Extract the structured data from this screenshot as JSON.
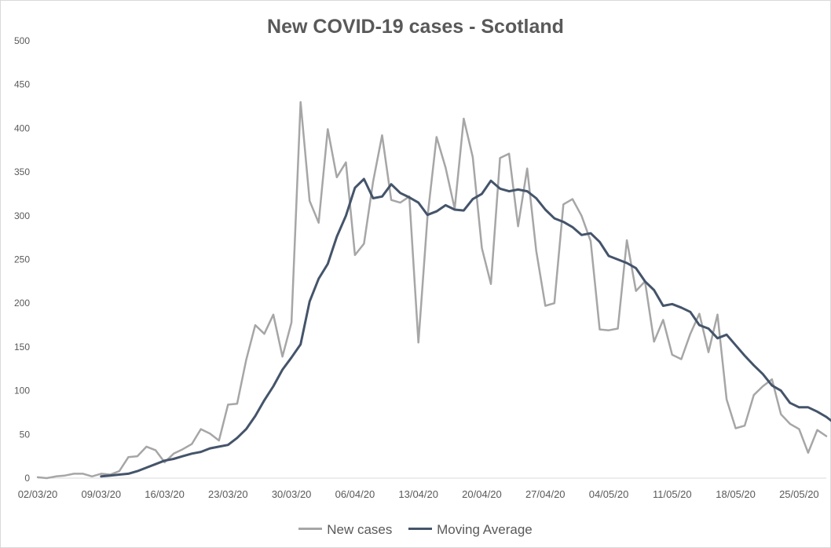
{
  "chart_data": {
    "type": "line",
    "title": "New COVID-19 cases - Scotland",
    "xlabel": "",
    "ylabel": "",
    "ylim": [
      0,
      500
    ],
    "y_ticks": [
      0,
      50,
      100,
      150,
      200,
      250,
      300,
      350,
      400,
      450,
      500
    ],
    "x_tick_labels": [
      "02/03/20",
      "09/03/20",
      "16/03/20",
      "23/03/20",
      "30/03/20",
      "06/04/20",
      "13/04/20",
      "20/04/20",
      "27/04/20",
      "04/05/20",
      "11/05/20",
      "18/05/20",
      "25/05/20"
    ],
    "x_start": "02/03/20",
    "grid": false,
    "legend_position": "bottom",
    "series": [
      {
        "name": "New cases",
        "color": "#a6a6a6",
        "values": [
          1,
          0,
          2,
          3,
          5,
          5,
          2,
          5,
          4,
          8,
          24,
          25,
          36,
          32,
          18,
          28,
          33,
          39,
          56,
          51,
          43,
          84,
          85,
          135,
          175,
          165,
          187,
          139,
          178,
          430,
          317,
          292,
          399,
          344,
          361,
          255,
          268,
          339,
          392,
          318,
          315,
          322,
          155,
          298,
          390,
          355,
          308,
          411,
          367,
          263,
          222,
          366,
          371,
          288,
          354,
          260,
          197,
          200,
          313,
          319,
          300,
          271,
          170,
          169,
          171,
          272,
          214,
          225,
          156,
          181,
          141,
          136,
          165,
          188,
          144,
          187,
          90,
          57,
          60,
          95,
          105,
          113,
          73,
          62,
          56,
          29,
          55,
          48
        ]
      },
      {
        "name": "Moving Average",
        "color": "#44546a",
        "start_index": 7,
        "values": [
          2,
          3,
          4,
          5,
          8,
          12,
          16,
          20,
          22,
          25,
          28,
          30,
          34,
          36,
          38,
          46,
          56,
          71,
          89,
          105,
          124,
          138,
          153,
          202,
          228,
          245,
          276,
          300,
          332,
          342,
          320,
          322,
          336,
          326,
          321,
          315,
          301,
          305,
          312,
          307,
          306,
          319,
          325,
          340,
          331,
          328,
          330,
          328,
          320,
          307,
          297,
          293,
          287,
          278,
          280,
          270,
          254,
          250,
          246,
          240,
          225,
          215,
          197,
          199,
          195,
          190,
          175,
          171,
          160,
          164,
          152,
          140,
          129,
          119,
          106,
          100,
          86,
          81,
          81,
          76,
          70,
          62
        ]
      }
    ]
  }
}
